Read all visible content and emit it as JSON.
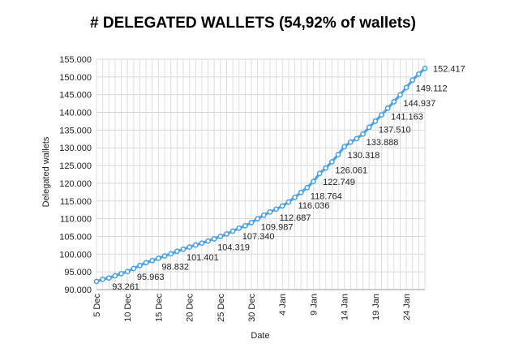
{
  "chart_data": {
    "type": "line",
    "title": "# DELEGATED WALLETS (54,92% of wallets)",
    "xlabel": "Date",
    "ylabel": "Delegated wallets",
    "ylim": [
      90000,
      155000
    ],
    "yticks": [
      "90.000",
      "95.000",
      "100.000",
      "105.000",
      "110.000",
      "115.000",
      "120.000",
      "125.000",
      "130.000",
      "135.000",
      "140.000",
      "145.000",
      "150.000",
      "155.000"
    ],
    "xtick_labels": [
      "5 Dec",
      "10 Dec",
      "15 Dec",
      "20 Dec",
      "25 Dec",
      "30 Dec",
      "4 Jan",
      "9 Jan",
      "14 Jan",
      "19 Jan",
      "24 Jan"
    ],
    "grid": true,
    "line_color": "#4da3ea",
    "series": [
      {
        "values": [
          92300,
          92900,
          93261,
          93900,
          94500,
          95100,
          95963,
          96800,
          97600,
          98200,
          98832,
          99500,
          100100,
          100800,
          101401,
          102000,
          102600,
          103100,
          103700,
          104319,
          105000,
          105700,
          106500,
          107340,
          108000,
          108900,
          109987,
          111000,
          111900,
          112687,
          113600,
          114700,
          116036,
          117400,
          118764,
          120500,
          122749,
          124300,
          126061,
          128100,
          130318,
          131600,
          132600,
          133888,
          135800,
          137510,
          139300,
          141163,
          143000,
          144937,
          147000,
          149112,
          150800,
          152417
        ],
        "labels": {
          "2": "93.261",
          "6": "95.963",
          "10": "98.832",
          "14": "101.401",
          "19": "104.319",
          "23": "107.340",
          "26": "109.987",
          "29": "112.687",
          "32": "116.036",
          "34": "118.764",
          "36": "122.749",
          "38": "126.061",
          "40": "130.318",
          "43": "133.888",
          "45": "137.510",
          "47": "141.163",
          "49": "144.937",
          "51": "149.112",
          "53": "152.417"
        }
      }
    ]
  }
}
